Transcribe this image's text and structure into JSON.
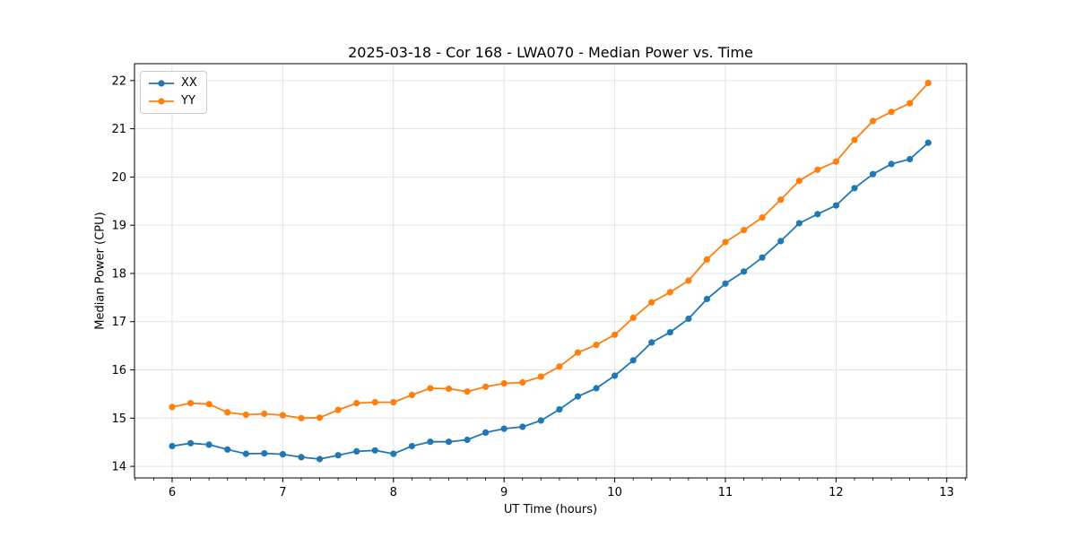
{
  "chart_data": {
    "type": "line",
    "title": "2025-03-18 - Cor 168 - LWA070 - Median Power vs. Time",
    "xlabel": "UT Time (hours)",
    "ylabel": "Median Power (CPU)",
    "xlim": [
      5.66,
      13.18
    ],
    "ylim": [
      13.76,
      22.35
    ],
    "x_ticks": [
      6,
      7,
      8,
      9,
      10,
      11,
      12,
      13
    ],
    "y_ticks": [
      14,
      15,
      16,
      17,
      18,
      19,
      20,
      21,
      22
    ],
    "x_minor_tick_step": 0.166667,
    "grid": true,
    "legend_position": "upper left",
    "x": [
      6.0,
      6.167,
      6.333,
      6.5,
      6.667,
      6.833,
      7.0,
      7.167,
      7.333,
      7.5,
      7.667,
      7.833,
      8.0,
      8.167,
      8.333,
      8.5,
      8.667,
      8.833,
      9.0,
      9.167,
      9.333,
      9.5,
      9.667,
      9.833,
      10.0,
      10.167,
      10.333,
      10.5,
      10.667,
      10.833,
      11.0,
      11.167,
      11.333,
      11.5,
      11.667,
      11.833,
      12.0,
      12.167,
      12.333,
      12.5,
      12.667,
      12.833
    ],
    "series": [
      {
        "name": "XX",
        "color": "#1f77b4",
        "values": [
          14.42,
          14.48,
          14.45,
          14.35,
          14.26,
          14.27,
          14.25,
          14.19,
          14.15,
          14.23,
          14.31,
          14.33,
          14.26,
          14.42,
          14.51,
          14.51,
          14.55,
          14.7,
          14.78,
          14.82,
          14.95,
          15.18,
          15.45,
          15.62,
          15.88,
          16.2,
          16.57,
          16.78,
          17.06,
          17.47,
          17.79,
          18.04,
          18.33,
          18.67,
          19.04,
          19.23,
          19.41,
          19.77,
          20.06,
          20.27,
          20.37,
          20.71
        ]
      },
      {
        "name": "YY",
        "color": "#ff7f0e",
        "values": [
          15.23,
          15.31,
          15.29,
          15.12,
          15.07,
          15.09,
          15.06,
          15.0,
          15.01,
          15.17,
          15.31,
          15.33,
          15.33,
          15.48,
          15.62,
          15.61,
          15.55,
          15.65,
          15.72,
          15.74,
          15.86,
          16.07,
          16.36,
          16.52,
          16.73,
          17.08,
          17.4,
          17.61,
          17.85,
          18.29,
          18.65,
          18.9,
          19.16,
          19.53,
          19.92,
          20.15,
          20.32,
          20.77,
          21.16,
          21.35,
          21.53,
          21.95
        ]
      }
    ],
    "colors": {
      "grid": "#e3e3e3",
      "spine": "#000000",
      "tick": "#000000",
      "text": "#000000",
      "background": "#ffffff"
    }
  }
}
